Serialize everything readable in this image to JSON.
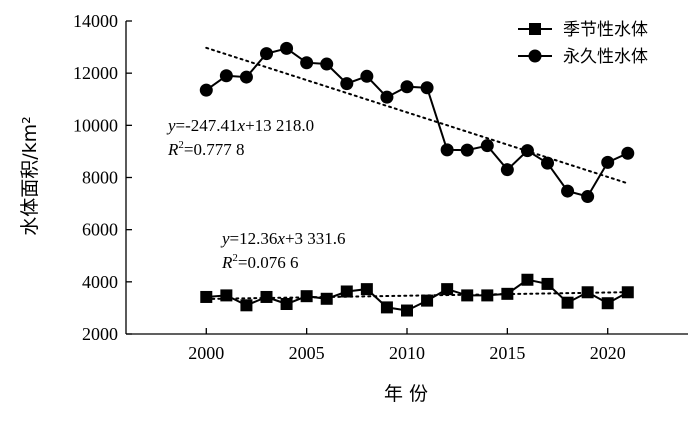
{
  "chart_data": {
    "type": "line",
    "x": [
      2000,
      2001,
      2002,
      2003,
      2004,
      2005,
      2006,
      2007,
      2008,
      2009,
      2010,
      2011,
      2012,
      2013,
      2014,
      2015,
      2016,
      2017,
      2018,
      2019,
      2020,
      2021
    ],
    "series": [
      {
        "name": "季节性水体",
        "marker": "square",
        "values": [
          3420,
          3480,
          3100,
          3420,
          3150,
          3450,
          3350,
          3630,
          3720,
          3020,
          2900,
          3280,
          3720,
          3480,
          3480,
          3540,
          4080,
          3920,
          3200,
          3600,
          3180,
          3600
        ]
      },
      {
        "name": "永久性水体",
        "marker": "circle",
        "values": [
          11350,
          11900,
          11850,
          12750,
          12950,
          12400,
          12350,
          11600,
          11880,
          11080,
          11480,
          11440,
          9060,
          9050,
          9220,
          8300,
          9030,
          8550,
          7480,
          7270,
          8580,
          8930
        ]
      }
    ],
    "trendlines": [
      {
        "series": "永久性水体",
        "slope": -247.41,
        "intercept": 13218.0,
        "x_from": 2000,
        "x_to": 2021
      },
      {
        "series": "季节性水体",
        "slope": 12.36,
        "intercept": 3331.6,
        "x_from": 2000,
        "x_to": 2021
      }
    ],
    "xlabel": "年 份",
    "ylabel": "水体面积/km²",
    "xlim": [
      1996,
      2024
    ],
    "ylim": [
      2000,
      14000
    ],
    "xticks": [
      "2000",
      "2005",
      "2010",
      "2015",
      "2020"
    ],
    "yticks": [
      "2000",
      "4000",
      "6000",
      "8000",
      "10000",
      "12000",
      "14000"
    ],
    "legend_position": "top-right",
    "grid": false
  },
  "annotations": {
    "perm_eq_y": "y",
    "perm_eq_rest": "=-247.41",
    "perm_eq_x": "x",
    "perm_eq_tail": "+13 218.0",
    "perm_r2_r": "R",
    "perm_r2_sup": "2",
    "perm_r2_val": "=0.777 8",
    "seas_eq_y": "y",
    "seas_eq_rest": "=12.36",
    "seas_eq_x": "x",
    "seas_eq_tail": "+3 331.6",
    "seas_r2_r": "R",
    "seas_r2_sup": "2",
    "seas_r2_val": "=0.076 6"
  },
  "colors": {
    "line": "#000000",
    "background": "#ffffff"
  }
}
